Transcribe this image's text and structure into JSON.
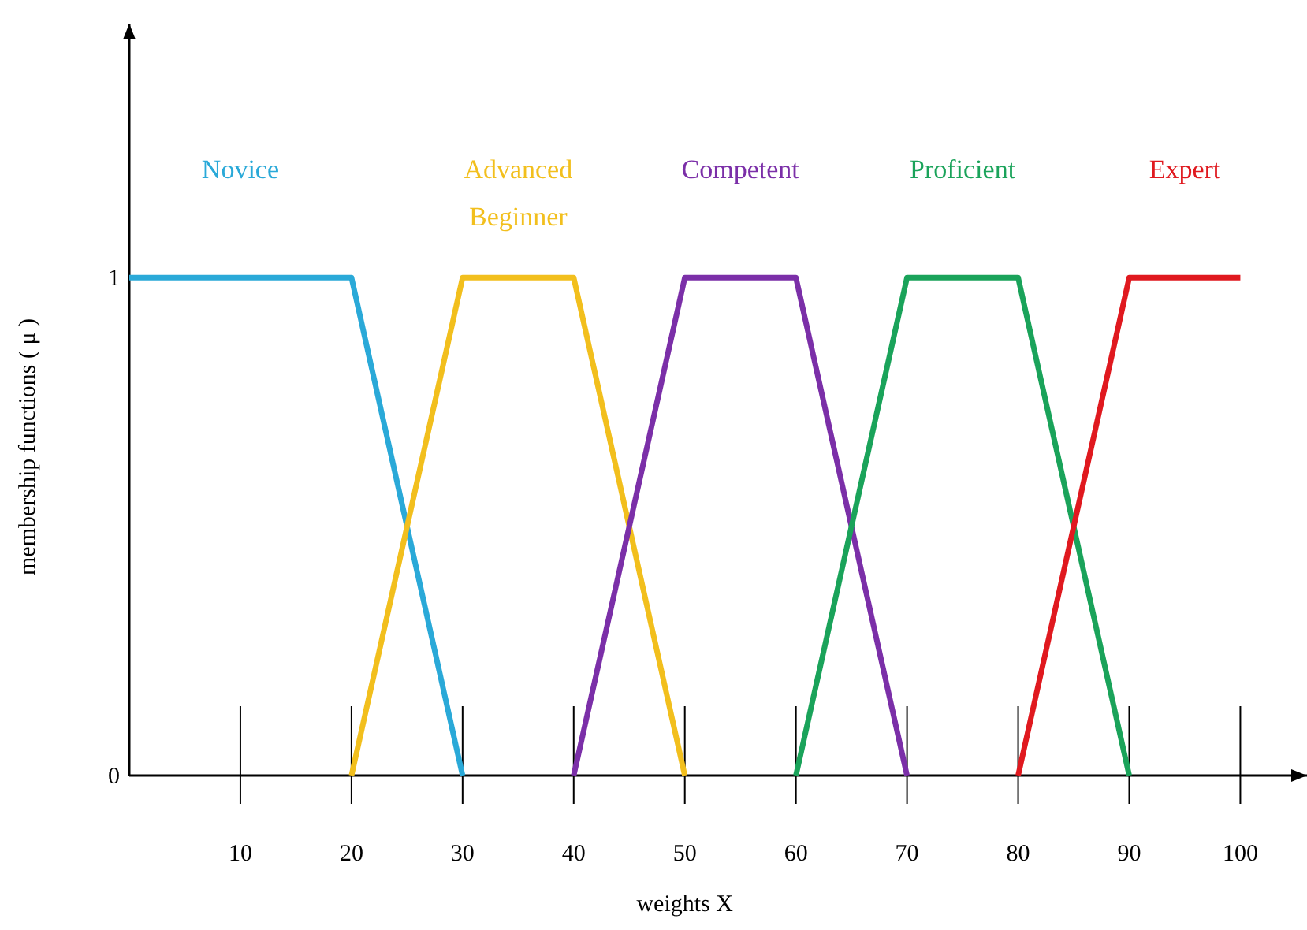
{
  "chart_data": {
    "type": "line",
    "xlabel": "weights X",
    "ylabel": "membership functions ( μ )",
    "xlim": [
      0,
      106
    ],
    "ylim": [
      0,
      1.51
    ],
    "xticks": [
      10,
      20,
      30,
      40,
      50,
      60,
      70,
      80,
      90,
      100
    ],
    "yticks": [
      0,
      1
    ],
    "grid": false,
    "marker": "none",
    "line_style": "solid",
    "series": [
      {
        "name": "Novice",
        "color": "#2aa9d8",
        "x": [
          0,
          20,
          30
        ],
        "values": [
          1,
          1,
          0
        ]
      },
      {
        "name": "Advanced Beginner",
        "color": "#f2bf1d",
        "x": [
          20,
          30,
          40,
          50
        ],
        "values": [
          0,
          1,
          1,
          0
        ]
      },
      {
        "name": "Competent",
        "color": "#7b2fa8",
        "x": [
          40,
          50,
          60,
          70
        ],
        "values": [
          0,
          1,
          1,
          0
        ]
      },
      {
        "name": "Proficient",
        "color": "#1aa35a",
        "x": [
          60,
          70,
          80,
          90
        ],
        "values": [
          0,
          1,
          1,
          0
        ]
      },
      {
        "name": "Expert",
        "color": "#e0191f",
        "x": [
          80,
          90,
          100
        ],
        "values": [
          0,
          1,
          1
        ]
      }
    ]
  }
}
